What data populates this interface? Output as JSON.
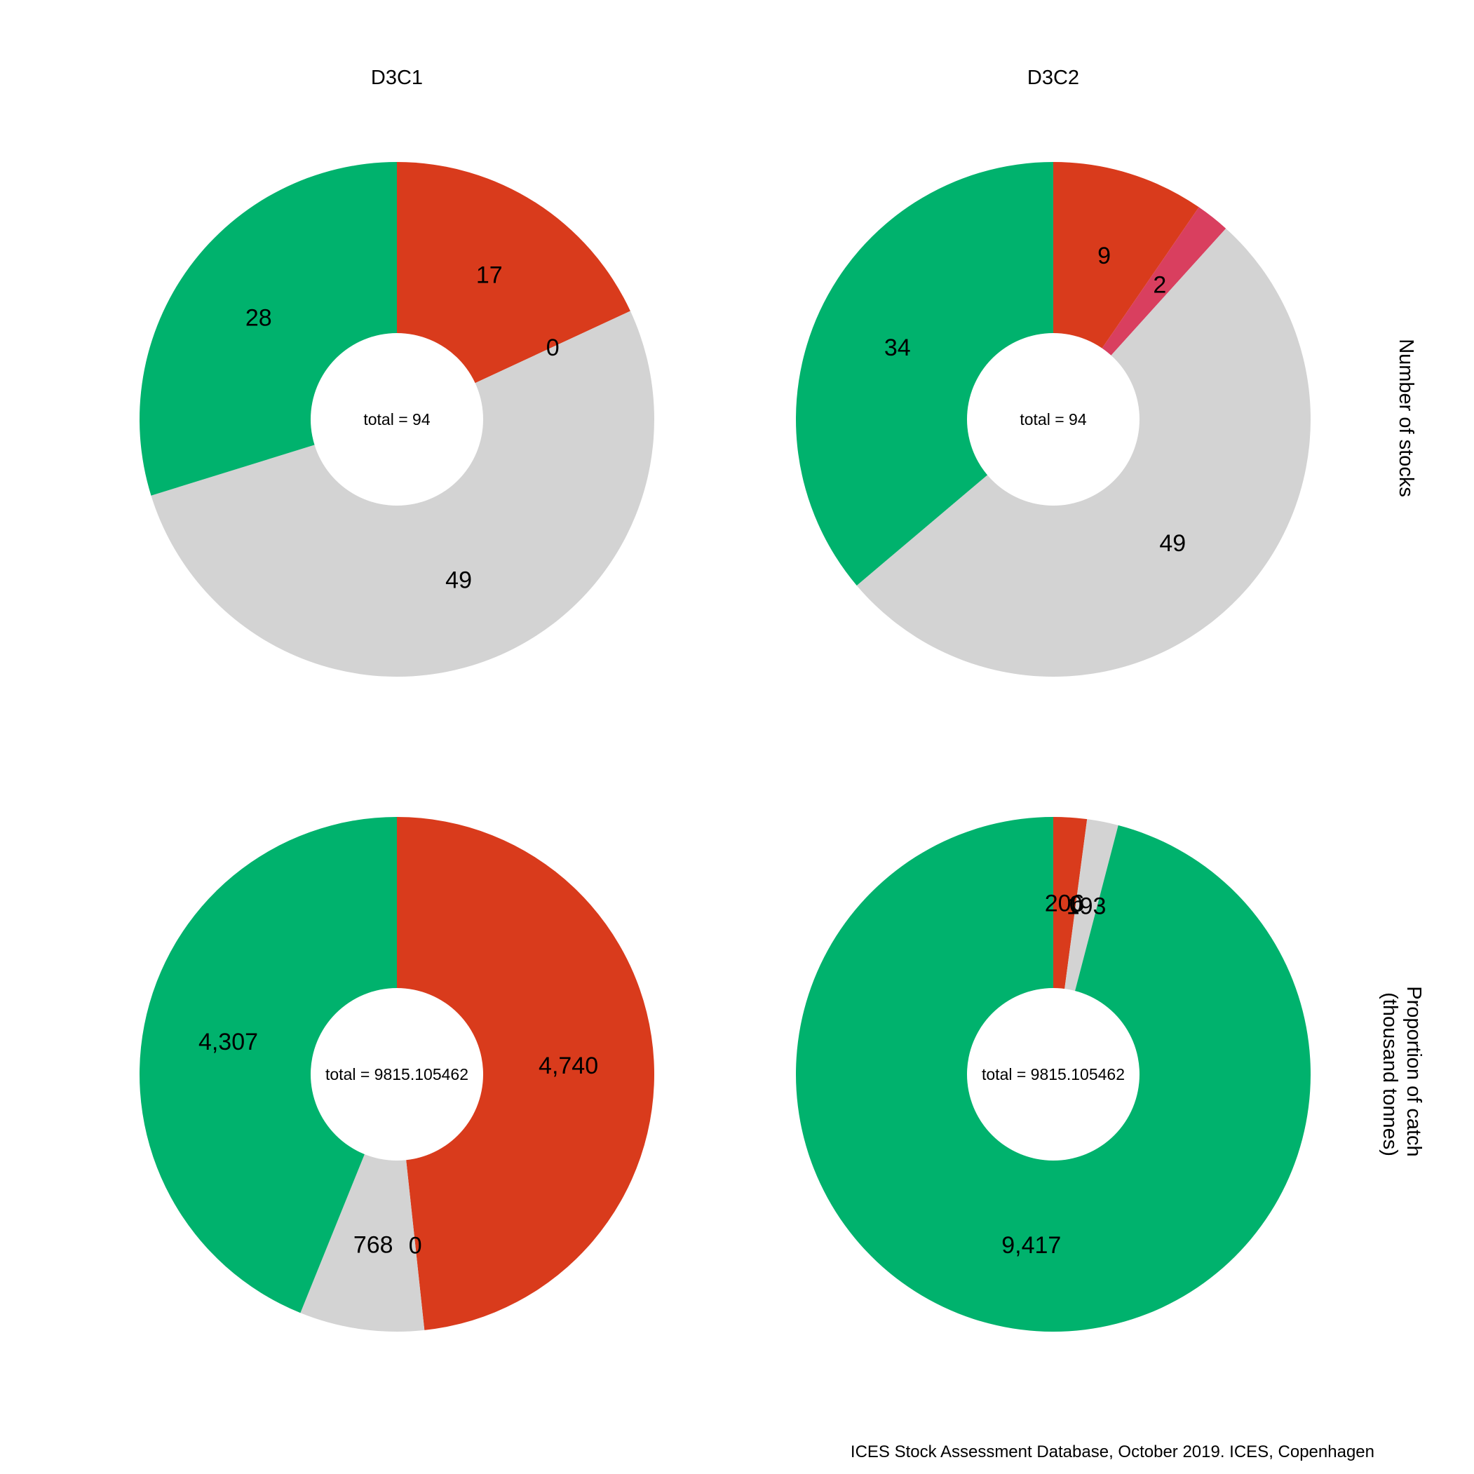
{
  "colors": {
    "green": "#00B26D",
    "red": "#D93B1C",
    "pink": "#D93F5F",
    "grey": "#D3D3D3",
    "hole": "#FFFFFF"
  },
  "column_titles": [
    "D3C1",
    "D3C2"
  ],
  "row_labels": [
    [
      "Number of stocks"
    ],
    [
      "Proportion of catch",
      "(thousand tonnes)"
    ]
  ],
  "caption": "ICES Stock Assessment Database, October 2019. ICES, Copenhagen",
  "chart_data": [
    {
      "type": "pie",
      "variant": "donut",
      "column": "D3C1",
      "row": "Number of stocks",
      "center_label": "total = 94",
      "slices": [
        {
          "value": 17,
          "label": "17",
          "color": "red"
        },
        {
          "value": 0,
          "label": "0",
          "color": "pink"
        },
        {
          "value": 49,
          "label": "49",
          "color": "grey"
        },
        {
          "value": 28,
          "label": "28",
          "color": "green"
        }
      ]
    },
    {
      "type": "pie",
      "variant": "donut",
      "column": "D3C2",
      "row": "Number of stocks",
      "center_label": "total = 94",
      "slices": [
        {
          "value": 9,
          "label": "9",
          "color": "red"
        },
        {
          "value": 2,
          "label": "2",
          "color": "pink"
        },
        {
          "value": 49,
          "label": "49",
          "color": "grey"
        },
        {
          "value": 34,
          "label": "34",
          "color": "green"
        }
      ]
    },
    {
      "type": "pie",
      "variant": "donut",
      "column": "D3C1",
      "row": "Proportion of catch (thousand tonnes)",
      "center_label": "total = 9815.105462",
      "slices": [
        {
          "value": 4740,
          "label": "4,740",
          "color": "red"
        },
        {
          "value": 0,
          "label": "0",
          "color": "pink"
        },
        {
          "value": 768,
          "label": "768",
          "color": "grey"
        },
        {
          "value": 4307,
          "label": "4,307",
          "color": "green"
        }
      ]
    },
    {
      "type": "pie",
      "variant": "donut",
      "column": "D3C2",
      "row": "Proportion of catch (thousand tonnes)",
      "center_label": "total = 9815.105462",
      "slices": [
        {
          "value": 206,
          "label": "206",
          "color": "red"
        },
        {
          "value": 0,
          "label": "0",
          "color": "pink"
        },
        {
          "value": 193,
          "label": "193",
          "color": "grey"
        },
        {
          "value": 9417,
          "label": "9,417",
          "color": "green"
        }
      ]
    }
  ]
}
